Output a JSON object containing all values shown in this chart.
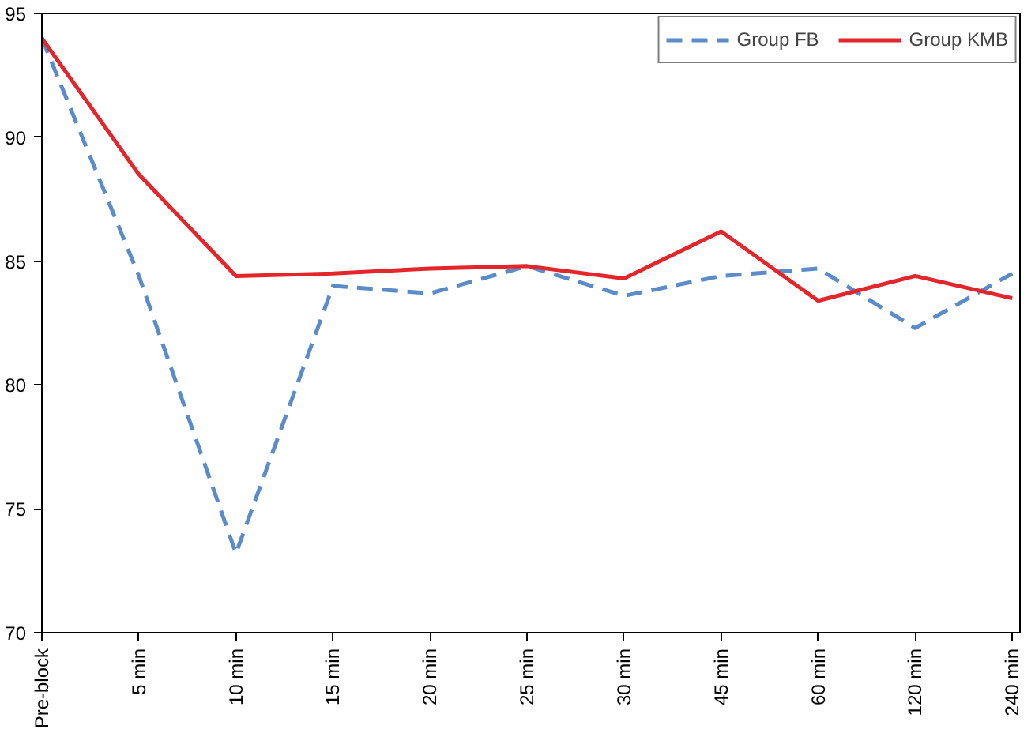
{
  "chart_data": {
    "type": "line",
    "categories": [
      "Pre-block",
      "5 min",
      "10 min",
      "15 min",
      "20 min",
      "25 min",
      "30 min",
      "45 min",
      "60 min",
      "120 min",
      "240 min"
    ],
    "series": [
      {
        "name": "Group FB",
        "color": "#5b8bc9",
        "line_style": "dashed",
        "values": [
          94,
          84.4,
          73.2,
          84,
          83.7,
          84.8,
          83.6,
          84.4,
          84.7,
          82.3,
          84.5
        ]
      },
      {
        "name": "Group KMB",
        "color": "#e3262b",
        "line_style": "solid",
        "values": [
          94,
          88.5,
          84.4,
          84.5,
          84.7,
          84.8,
          84.3,
          86.2,
          83.4,
          84.4,
          83.5
        ]
      }
    ],
    "ylim": [
      70,
      95
    ],
    "yticks": [
      70,
      75,
      80,
      85,
      90,
      95
    ],
    "grid": false,
    "legend": "top right"
  }
}
